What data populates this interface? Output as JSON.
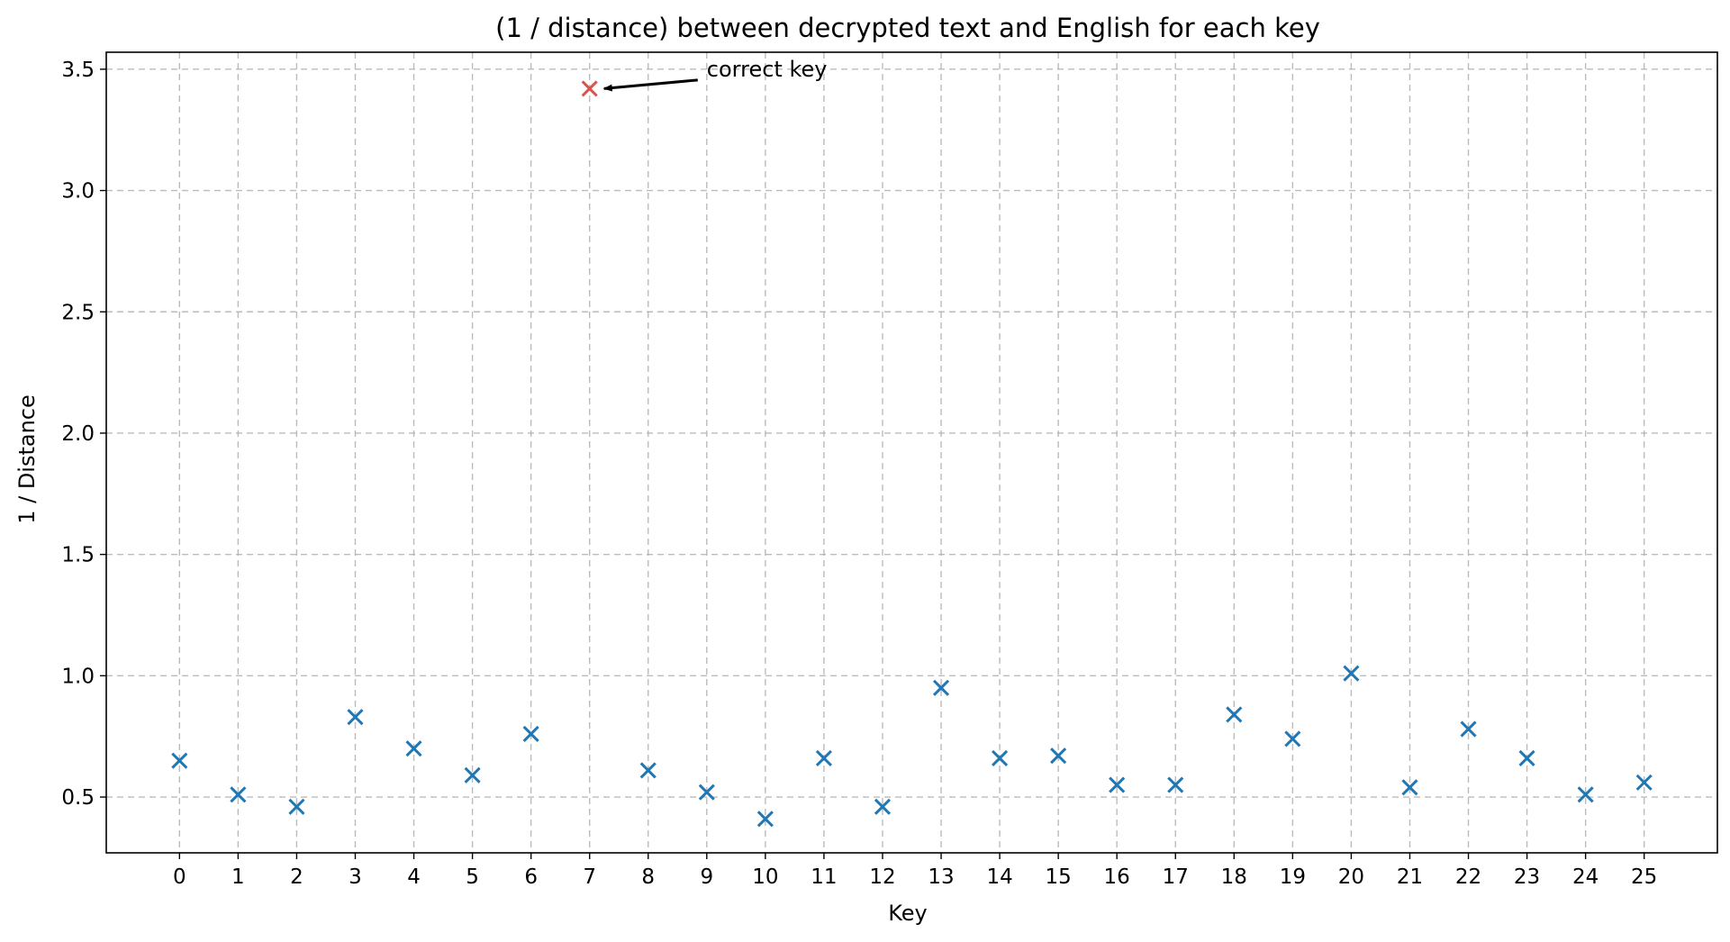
{
  "chart_data": {
    "type": "scatter",
    "title": "(1 / distance) between decrypted text and English for each key",
    "xlabel": "Key",
    "ylabel": "1 / Distance",
    "x": [
      0,
      1,
      2,
      3,
      4,
      5,
      6,
      7,
      8,
      9,
      10,
      11,
      12,
      13,
      14,
      15,
      16,
      17,
      18,
      19,
      20,
      21,
      22,
      23,
      24,
      25
    ],
    "y": [
      0.65,
      0.51,
      0.46,
      0.83,
      0.7,
      0.59,
      0.76,
      3.42,
      0.61,
      0.52,
      0.41,
      0.66,
      0.46,
      0.95,
      0.66,
      0.67,
      0.55,
      0.55,
      0.84,
      0.74,
      1.01,
      0.54,
      0.78,
      0.66,
      0.51,
      0.56
    ],
    "xticks": [
      "0",
      "1",
      "2",
      "3",
      "4",
      "5",
      "6",
      "7",
      "8",
      "9",
      "10",
      "11",
      "12",
      "13",
      "14",
      "15",
      "16",
      "17",
      "18",
      "19",
      "20",
      "21",
      "22",
      "23",
      "24",
      "25"
    ],
    "yticks": [
      "0.5",
      "1.0",
      "1.5",
      "2.0",
      "2.5",
      "3.0",
      "3.5"
    ],
    "ytick_values": [
      0.5,
      1.0,
      1.5,
      2.0,
      2.5,
      3.0,
      3.5
    ],
    "xlim": [
      -1.25,
      26.25
    ],
    "ylim": [
      0.27,
      3.57
    ],
    "grid": true,
    "marker": "x",
    "colors": {
      "default": "#1f77b4",
      "highlight": "#d9534f"
    },
    "highlight_index": 7,
    "annotation": {
      "text": "correct key",
      "target_x": 7,
      "target_y": 3.42,
      "text_x": 9,
      "text_y": 3.5
    }
  }
}
